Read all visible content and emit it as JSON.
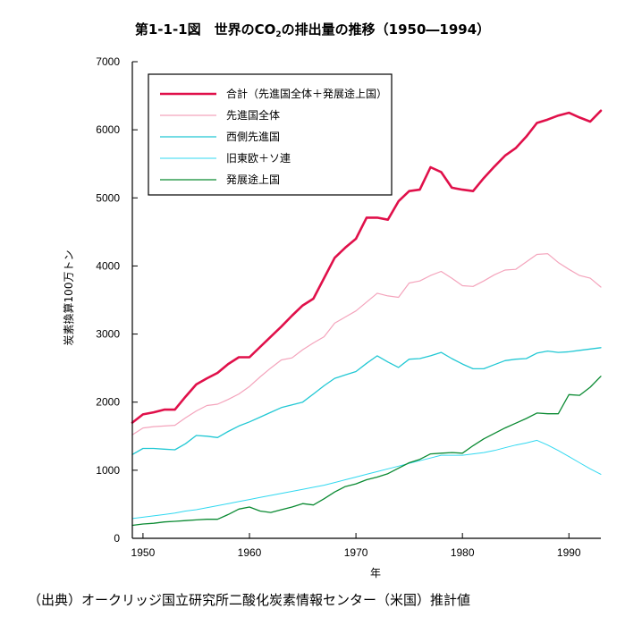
{
  "page": {
    "title_prefix": "第1-1-1図　世界のCO",
    "title_sub": "2",
    "title_suffix": "の排出量の推移（1950―1994）",
    "source_note": "（出典）オークリッジ国立研究所二酸化炭素情報センター（米国）推計値"
  },
  "chart_data": {
    "type": "line",
    "title": "第1-1-1図　世界のCO₂の排出量の推移（1950―1994）",
    "xlabel": "年",
    "ylabel": "炭素換算100万トン",
    "xlim": [
      1949,
      1993
    ],
    "ylim": [
      0,
      7000
    ],
    "xticks": [
      "1950",
      "1960",
      "1970",
      "1980",
      "1990"
    ],
    "yticks": [
      "0",
      "1000",
      "2000",
      "3000",
      "4000",
      "5000",
      "6000",
      "7000"
    ],
    "grid": false,
    "legend_position": "top-left",
    "x": [
      1949,
      1950,
      1951,
      1952,
      1953,
      1954,
      1955,
      1956,
      1957,
      1958,
      1959,
      1960,
      1961,
      1962,
      1963,
      1964,
      1965,
      1966,
      1967,
      1968,
      1969,
      1970,
      1971,
      1972,
      1973,
      1974,
      1975,
      1976,
      1977,
      1978,
      1979,
      1980,
      1981,
      1982,
      1983,
      1984,
      1985,
      1986,
      1987,
      1988,
      1989,
      1990,
      1991,
      1992,
      1993
    ],
    "series": [
      {
        "name": "合計（先進国全体＋発展途上国）",
        "color": "#e0104a",
        "width": 2.6,
        "values": [
          1700,
          1820,
          1850,
          1890,
          1890,
          2080,
          2260,
          2350,
          2430,
          2560,
          2660,
          2660,
          2810,
          2960,
          3110,
          3270,
          3420,
          3520,
          3820,
          4120,
          4270,
          4400,
          4710,
          4710,
          4680,
          4950,
          5100,
          5120,
          5450,
          5380,
          5150,
          5120,
          5100,
          5290,
          5460,
          5620,
          5730,
          5900,
          6100,
          6150,
          6210,
          6250,
          6180,
          6120,
          6280
        ]
      },
      {
        "name": "先進国全体",
        "color": "#f4a4bc",
        "width": 1.2,
        "values": [
          1520,
          1620,
          1640,
          1650,
          1660,
          1770,
          1870,
          1950,
          1970,
          2040,
          2120,
          2230,
          2370,
          2500,
          2620,
          2650,
          2770,
          2870,
          2960,
          3160,
          3250,
          3340,
          3470,
          3600,
          3560,
          3540,
          3750,
          3780,
          3860,
          3920,
          3820,
          3710,
          3700,
          3780,
          3870,
          3940,
          3950,
          4060,
          4170,
          4180,
          4050,
          3950,
          3860,
          3820,
          3690
        ]
      },
      {
        "name": "西側先進国",
        "color": "#22c8d4",
        "width": 1.3,
        "values": [
          1230,
          1320,
          1320,
          1310,
          1300,
          1390,
          1510,
          1500,
          1480,
          1570,
          1650,
          1710,
          1780,
          1850,
          1920,
          1960,
          2000,
          2120,
          2240,
          2350,
          2400,
          2450,
          2570,
          2680,
          2590,
          2510,
          2630,
          2640,
          2680,
          2730,
          2640,
          2560,
          2490,
          2490,
          2550,
          2610,
          2630,
          2640,
          2720,
          2750,
          2730,
          2740,
          2760,
          2780,
          2800
        ]
      },
      {
        "name": "旧東欧＋ソ連",
        "color": "#30d8f0",
        "width": 1.0,
        "values": [
          290,
          310,
          330,
          350,
          370,
          400,
          420,
          450,
          480,
          510,
          540,
          570,
          600,
          630,
          660,
          690,
          720,
          750,
          780,
          820,
          860,
          900,
          940,
          980,
          1020,
          1060,
          1100,
          1140,
          1180,
          1220,
          1220,
          1220,
          1240,
          1260,
          1290,
          1330,
          1370,
          1400,
          1440,
          1370,
          1290,
          1200,
          1110,
          1020,
          940
        ]
      },
      {
        "name": "発展途上国",
        "color": "#0a8a32",
        "width": 1.3,
        "values": [
          190,
          210,
          220,
          240,
          250,
          260,
          270,
          280,
          280,
          350,
          430,
          460,
          400,
          380,
          420,
          460,
          510,
          490,
          580,
          680,
          760,
          800,
          860,
          900,
          950,
          1030,
          1110,
          1160,
          1240,
          1250,
          1260,
          1250,
          1360,
          1460,
          1540,
          1620,
          1690,
          1760,
          1840,
          1830,
          1830,
          2110,
          2100,
          2220,
          2380
        ]
      }
    ]
  }
}
